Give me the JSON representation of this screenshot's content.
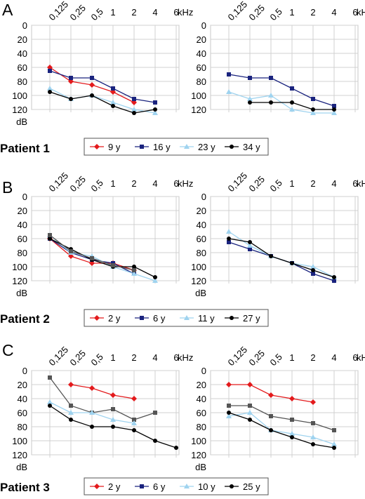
{
  "panels": [
    {
      "letter": "A",
      "patient_label": "Patient 1",
      "legend": [
        "9 y",
        "16 y",
        "23 y",
        "34 y"
      ]
    },
    {
      "letter": "B",
      "patient_label": "Patient 2",
      "legend": [
        "2 y",
        "6 y",
        "11 y",
        "27 y"
      ]
    },
    {
      "letter": "C",
      "patient_label": "Patient 3",
      "legend": [
        "2 y",
        "6 y",
        "10 y",
        "25 y"
      ]
    }
  ],
  "series_colors": [
    "#e31a1c",
    "#1a237e",
    "#9fd3ef",
    "#000000",
    "#555555"
  ],
  "chart_data": [
    {
      "type": "line",
      "panel": "A",
      "ear": "left",
      "x": [
        "0,125",
        "0,25",
        "0,5",
        "1",
        "2",
        "4",
        "6"
      ],
      "xlabel": "kHz",
      "ylabel": "dB",
      "yticks": [
        0,
        20,
        40,
        60,
        80,
        100,
        120
      ],
      "ylim": [
        0,
        130
      ],
      "grid": true,
      "series": [
        {
          "name": "9 y",
          "values": [
            60,
            80,
            85,
            95,
            110,
            null,
            null
          ]
        },
        {
          "name": "16 y",
          "values": [
            65,
            75,
            75,
            90,
            105,
            110,
            null
          ]
        },
        {
          "name": "23 y",
          "values": [
            90,
            105,
            100,
            110,
            120,
            125,
            null
          ]
        },
        {
          "name": "34 y",
          "values": [
            95,
            105,
            100,
            115,
            125,
            120,
            null
          ]
        }
      ]
    },
    {
      "type": "line",
      "panel": "A",
      "ear": "right",
      "x": [
        "0,125",
        "0,25",
        "0,5",
        "1",
        "2",
        "4",
        "6"
      ],
      "xlabel": "kHz",
      "ylabel": "",
      "yticks": [
        0,
        20,
        40,
        60,
        80,
        100,
        120
      ],
      "ylim": [
        0,
        130
      ],
      "grid": true,
      "series": [
        {
          "name": "16 y",
          "values": [
            70,
            75,
            75,
            90,
            105,
            115,
            null
          ]
        },
        {
          "name": "23 y",
          "values": [
            95,
            105,
            100,
            120,
            125,
            125,
            null
          ]
        },
        {
          "name": "34 y",
          "values": [
            null,
            110,
            110,
            110,
            120,
            120,
            null
          ]
        }
      ]
    },
    {
      "type": "line",
      "panel": "B",
      "ear": "left",
      "x": [
        "0,125",
        "0,25",
        "0,5",
        "1",
        "2",
        "4",
        "6"
      ],
      "xlabel": "kHz",
      "ylabel": "dB",
      "yticks": [
        0,
        20,
        40,
        60,
        80,
        100,
        120
      ],
      "ylim": [
        0,
        130
      ],
      "grid": true,
      "series": [
        {
          "name": "2 y",
          "values": [
            60,
            85,
            95,
            95,
            105,
            null,
            null
          ]
        },
        {
          "name": "6 y",
          "values": [
            60,
            80,
            90,
            95,
            110,
            null,
            null
          ]
        },
        {
          "name": "11 y",
          "values": [
            55,
            80,
            85,
            100,
            110,
            120,
            null
          ]
        },
        {
          "name": "27 y",
          "values": [
            60,
            75,
            90,
            100,
            100,
            115,
            null
          ]
        },
        {
          "name": "",
          "values": [
            55,
            78,
            88,
            98,
            105,
            null,
            null
          ]
        }
      ]
    },
    {
      "type": "line",
      "panel": "B",
      "ear": "right",
      "x": [
        "0,125",
        "0,25",
        "0,5",
        "1",
        "2",
        "4",
        "6"
      ],
      "xlabel": "kHz",
      "ylabel": "dB",
      "yticks": [
        0,
        20,
        40,
        60,
        80,
        100,
        120
      ],
      "ylim": [
        0,
        130
      ],
      "grid": true,
      "series": [
        {
          "name": "6 y",
          "values": [
            65,
            75,
            85,
            95,
            110,
            120,
            null
          ]
        },
        {
          "name": "11 y",
          "values": [
            50,
            70,
            85,
            95,
            100,
            115,
            null
          ]
        },
        {
          "name": "27 y",
          "values": [
            60,
            65,
            85,
            95,
            105,
            115,
            null
          ]
        }
      ]
    },
    {
      "type": "line",
      "panel": "C",
      "ear": "left",
      "x": [
        "0,125",
        "0,25",
        "0,5",
        "1",
        "2",
        "4",
        "6"
      ],
      "xlabel": "kHz",
      "ylabel": "dB",
      "yticks": [
        0,
        20,
        40,
        60,
        80,
        100,
        120
      ],
      "ylim": [
        0,
        130
      ],
      "grid": true,
      "series": [
        {
          "name": "2 y",
          "values": [
            null,
            20,
            25,
            35,
            40,
            null,
            null
          ]
        },
        {
          "name": "",
          "values": [
            10,
            50,
            60,
            55,
            70,
            60,
            null
          ]
        },
        {
          "name": "10 y",
          "values": [
            45,
            60,
            60,
            70,
            75,
            null,
            null
          ]
        },
        {
          "name": "25 y",
          "values": [
            50,
            70,
            80,
            80,
            85,
            100,
            110
          ]
        }
      ]
    },
    {
      "type": "line",
      "panel": "C",
      "ear": "right",
      "x": [
        "0,125",
        "0,25",
        "0,5",
        "1",
        "2",
        "4",
        "6"
      ],
      "xlabel": "kHz",
      "ylabel": "dB",
      "yticks": [
        0,
        20,
        40,
        60,
        80,
        100,
        120
      ],
      "ylim": [
        0,
        130
      ],
      "grid": true,
      "series": [
        {
          "name": "2 y",
          "values": [
            20,
            20,
            35,
            40,
            45,
            null,
            null
          ]
        },
        {
          "name": "",
          "values": [
            50,
            50,
            65,
            70,
            75,
            85,
            null
          ]
        },
        {
          "name": "10 y",
          "values": [
            65,
            60,
            85,
            90,
            95,
            105,
            null
          ]
        },
        {
          "name": "25 y",
          "values": [
            60,
            70,
            85,
            95,
            105,
            110,
            null
          ]
        }
      ]
    }
  ]
}
